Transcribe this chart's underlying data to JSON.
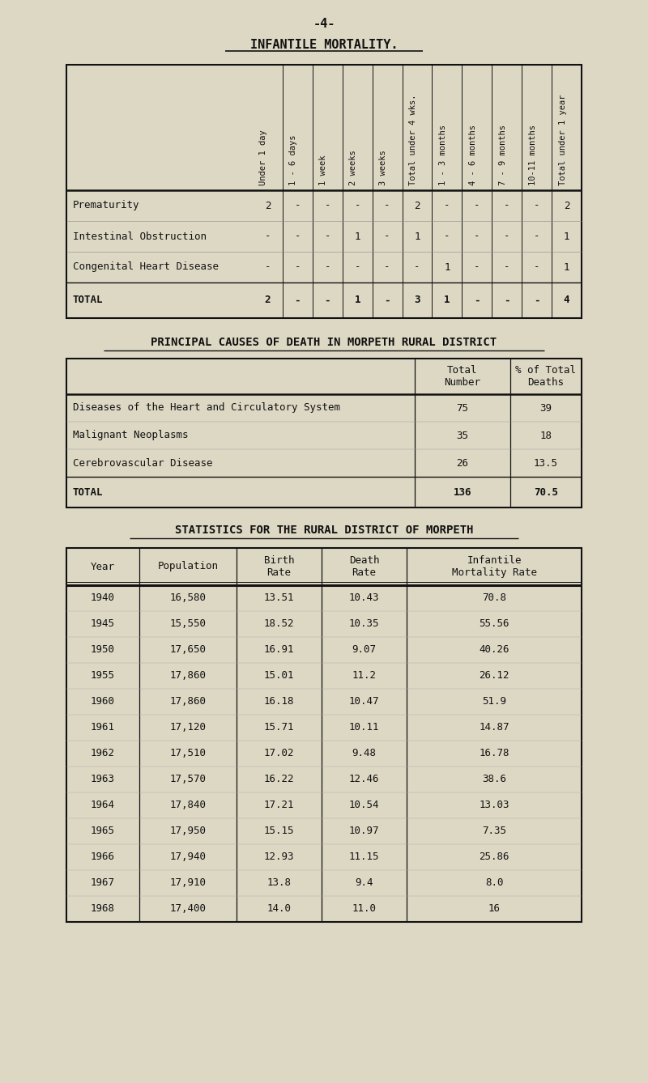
{
  "bg_color": "#ddd8c4",
  "text_color": "#111111",
  "page_num": "-4-",
  "title1": "INFANTILE MORTALITY.",
  "table1_col_headers": [
    "Under 1 day",
    "1 - 6 days",
    "1 week",
    "2 weeks",
    "3 weeks",
    "Total under 4 wks.",
    "1 - 3 months",
    "4 - 6 months",
    "7 - 9 months",
    "10-11 months",
    "Total under 1 year"
  ],
  "table1_rows": [
    {
      "label": "Prematurity",
      "vals": [
        "2",
        "-",
        "-",
        "-",
        "-",
        "2",
        "-",
        "-",
        "-",
        "-",
        "2"
      ]
    },
    {
      "label": "Intestinal Obstruction",
      "vals": [
        "-",
        "-",
        "-",
        "1",
        "-",
        "1",
        "-",
        "-",
        "-",
        "-",
        "1"
      ]
    },
    {
      "label": "Congenital Heart Disease",
      "vals": [
        "-",
        "-",
        "-",
        "-",
        "-",
        "-",
        "1",
        "-",
        "-",
        "-",
        "1"
      ]
    }
  ],
  "table1_total_label": "TOTAL",
  "table1_total_vals": [
    "2",
    "-",
    "-",
    "1",
    "-",
    "3",
    "1",
    "-",
    "-",
    "-",
    "4"
  ],
  "title2": "PRINCIPAL CAUSES OF DEATH IN MORPETH RURAL DISTRICT",
  "table2_rows": [
    {
      "label": "Diseases of the Heart and Circulatory System",
      "total": "75",
      "pct": "39"
    },
    {
      "label": "Malignant Neoplasms",
      "total": "35",
      "pct": "18"
    },
    {
      "label": "Cerebrovascular Disease",
      "total": "26",
      "pct": "13.5"
    }
  ],
  "table2_total_label": "TOTAL",
  "table2_total_total": "136",
  "table2_total_pct": "70.5",
  "title3": "STATISTICS FOR THE RURAL DISTRICT OF MORPETH",
  "table3_col_headers": [
    "Year",
    "Population",
    "Birth\nRate",
    "Death\nRate",
    "Infantile\nMortality Rate"
  ],
  "table3_rows": [
    [
      "1940",
      "16,580",
      "13.51",
      "10.43",
      "70.8"
    ],
    [
      "1945",
      "15,550",
      "18.52",
      "10.35",
      "55.56"
    ],
    [
      "1950",
      "17,650",
      "16.91",
      "9.07",
      "40.26"
    ],
    [
      "1955",
      "17,860",
      "15.01",
      "11.2",
      "26.12"
    ],
    [
      "1960",
      "17,860",
      "16.18",
      "10.47",
      "51.9"
    ],
    [
      "1961",
      "17,120",
      "15.71",
      "10.11",
      "14.87"
    ],
    [
      "1962",
      "17,510",
      "17.02",
      "9.48",
      "16.78"
    ],
    [
      "1963",
      "17,570",
      "16.22",
      "12.46",
      "38.6"
    ],
    [
      "1964",
      "17,840",
      "17.21",
      "10.54",
      "13.03"
    ],
    [
      "1965",
      "17,950",
      "15.15",
      "10.97",
      "7.35"
    ],
    [
      "1966",
      "17,940",
      "12.93",
      "11.15",
      "25.86"
    ],
    [
      "1967",
      "17,910",
      "13.8",
      "9.4",
      "8.0"
    ],
    [
      "1968",
      "17,400",
      "14.0",
      "11.0",
      "16"
    ]
  ]
}
